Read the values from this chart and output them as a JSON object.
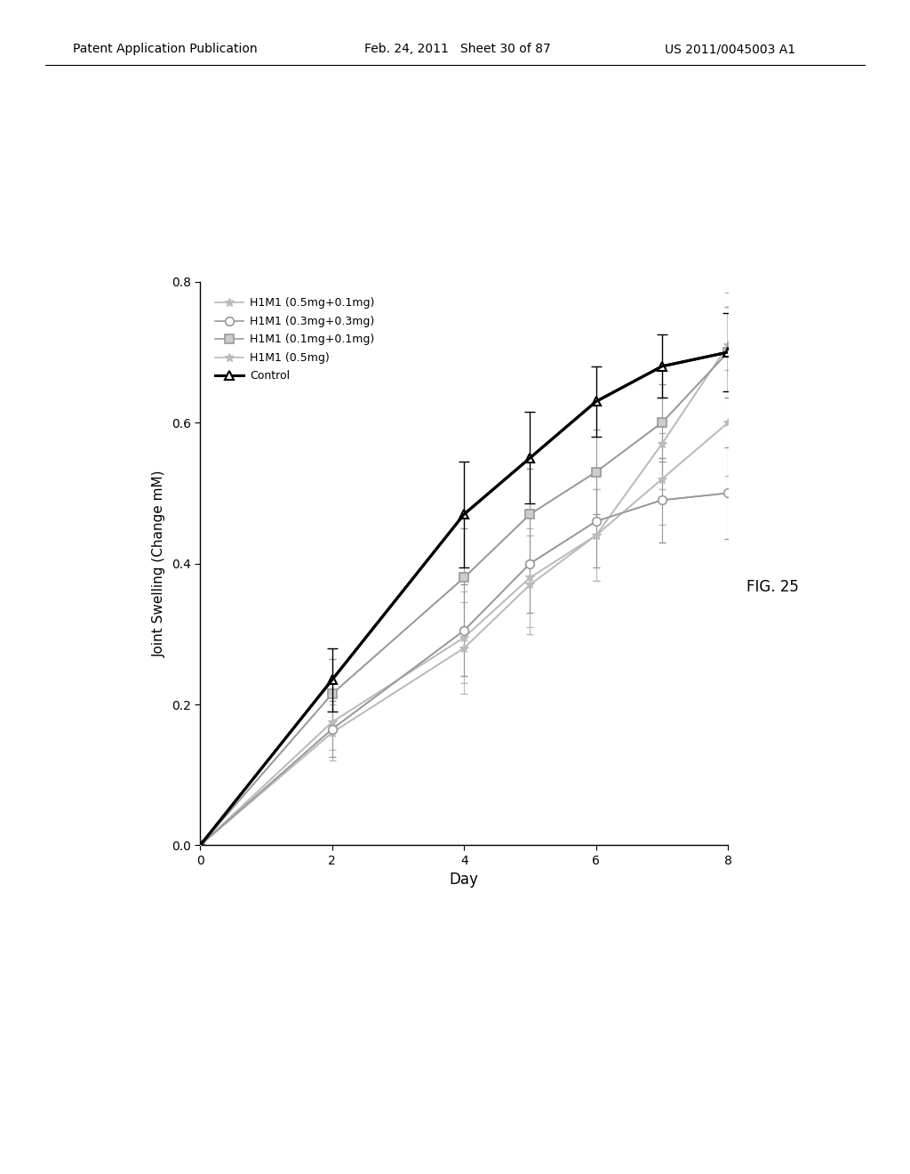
{
  "title": "",
  "xlabel": "Day",
  "ylabel": "Joint Swelling (Change mM)",
  "xlim": [
    0,
    8
  ],
  "ylim": [
    0.0,
    0.8
  ],
  "yticks": [
    0.0,
    0.2,
    0.4,
    0.6,
    0.8
  ],
  "xticks": [
    0,
    2,
    4,
    6,
    8
  ],
  "control": {
    "label": "Control",
    "x": [
      0,
      2,
      4,
      5,
      6,
      7,
      8
    ],
    "y": [
      0.0,
      0.235,
      0.47,
      0.55,
      0.63,
      0.68,
      0.7
    ],
    "yerr": [
      0.0,
      0.045,
      0.075,
      0.065,
      0.05,
      0.045,
      0.055
    ],
    "color": "#000000",
    "linewidth": 2.2,
    "marker": "^",
    "markersize": 7
  },
  "h1m1_01_01": {
    "label": "H1M1 (0.1mg+0.1mg)",
    "x": [
      0,
      2,
      4,
      5,
      6,
      7,
      8
    ],
    "y": [
      0.0,
      0.215,
      0.38,
      0.47,
      0.53,
      0.6,
      0.7
    ],
    "yerr": [
      0.0,
      0.05,
      0.07,
      0.065,
      0.06,
      0.055,
      0.065
    ],
    "color": "#999999",
    "linewidth": 1.2,
    "marker": "s",
    "markersize": 7
  },
  "h1m1_03_03": {
    "label": "H1M1 (0.3mg+0.3mg)",
    "x": [
      0,
      2,
      4,
      5,
      6,
      7,
      8
    ],
    "y": [
      0.0,
      0.165,
      0.305,
      0.4,
      0.46,
      0.49,
      0.5
    ],
    "yerr": [
      0.0,
      0.04,
      0.065,
      0.07,
      0.065,
      0.06,
      0.065
    ],
    "color": "#999999",
    "linewidth": 1.2,
    "marker": "o",
    "markersize": 7
  },
  "h1m1_05_01": {
    "label": "H1M1 (0.5mg+0.1mg)",
    "x": [
      0,
      2,
      4,
      5,
      6,
      7,
      8
    ],
    "y": [
      0.0,
      0.16,
      0.28,
      0.37,
      0.44,
      0.57,
      0.71
    ],
    "yerr": [
      0.0,
      0.04,
      0.065,
      0.07,
      0.065,
      0.065,
      0.075
    ],
    "color": "#bbbbbb",
    "linewidth": 1.2,
    "marker": "x",
    "markersize": 7
  },
  "h1m1_05": {
    "label": "H1M1 (0.5mg)",
    "x": [
      0,
      2,
      4,
      5,
      6,
      7,
      8
    ],
    "y": [
      0.0,
      0.175,
      0.295,
      0.38,
      0.44,
      0.52,
      0.6
    ],
    "yerr": [
      0.0,
      0.04,
      0.065,
      0.07,
      0.065,
      0.065,
      0.075
    ],
    "color": "#bbbbbb",
    "linewidth": 1.2,
    "marker": "x",
    "markersize": 7
  },
  "fig_label": "FIG. 25",
  "background_color": "#ffffff",
  "header_left": "Patent Application Publication",
  "header_mid": "Feb. 24, 2011   Sheet 30 of 87",
  "header_right": "US 2011/0045003 A1"
}
